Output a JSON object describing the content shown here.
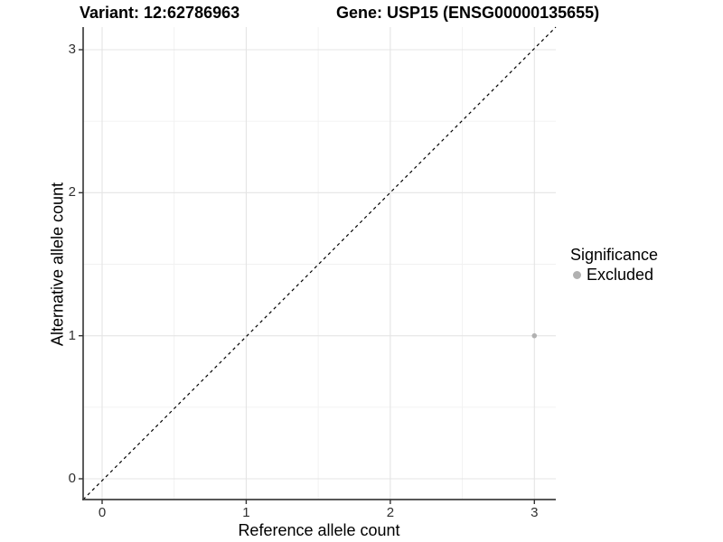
{
  "titles": {
    "variant": "Variant: 12:62786963",
    "gene": "Gene: USP15 (ENSG00000135655)"
  },
  "chart_data": {
    "type": "scatter",
    "title_left": "Variant: 12:62786963",
    "title_right": "Gene: USP15 (ENSG00000135655)",
    "xlabel": "Reference allele count",
    "ylabel": "Alternative allele count",
    "xlim": [
      -0.15,
      3.15
    ],
    "ylim": [
      -0.15,
      3.15
    ],
    "x_ticks": [
      0,
      1,
      2,
      3
    ],
    "y_ticks": [
      0,
      1,
      2,
      3
    ],
    "x_minor_ticks": [
      0.5,
      1.5,
      2.5
    ],
    "y_minor_ticks": [
      0.5,
      1.5,
      2.5
    ],
    "grid": "major and minor gridlines on, white panel",
    "series": [
      {
        "name": "Excluded",
        "points": [
          {
            "x": 3,
            "y": 1
          }
        ],
        "color": "#b1b1b1"
      }
    ],
    "reference_line": {
      "description": "identity line y = x",
      "style": "dashed",
      "color": "#000000",
      "from": [
        -0.15,
        -0.15
      ],
      "to": [
        3.15,
        3.15
      ]
    },
    "legend": {
      "title": "Significance",
      "position": "right",
      "entries": [
        {
          "label": "Excluded",
          "color": "#b1b1b1"
        }
      ]
    },
    "colors": {
      "background": "#ffffff",
      "grid_major": "#e4e4e4",
      "grid_minor": "#f1f1f1",
      "axis_line": "#404040",
      "tick_mark": "#333333",
      "point": "#b1b1b1"
    }
  }
}
